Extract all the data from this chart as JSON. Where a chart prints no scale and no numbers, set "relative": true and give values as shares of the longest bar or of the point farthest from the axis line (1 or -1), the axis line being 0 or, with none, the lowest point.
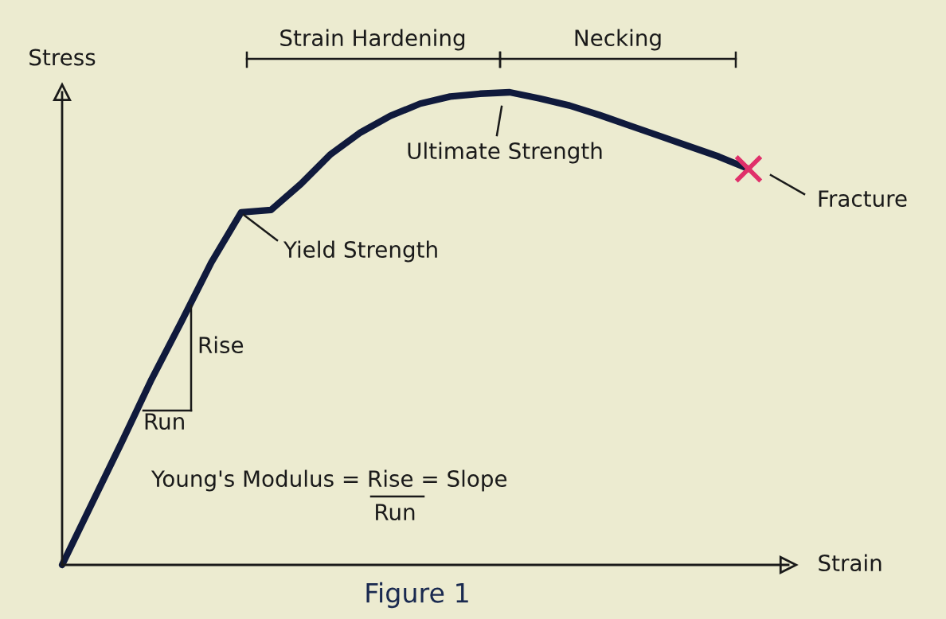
{
  "chart_data": {
    "type": "line",
    "relative": true,
    "xlabel": "Strain",
    "ylabel": "Stress",
    "categories": [
      null,
      null,
      null,
      null,
      null,
      null,
      null,
      null,
      null,
      null,
      null,
      null,
      null,
      null,
      null,
      null,
      null,
      null,
      null,
      null,
      null,
      null,
      null,
      null
    ],
    "series": [
      {
        "color": "#101a3c",
        "values": [
          0,
          0.13,
          0.26,
          0.393,
          0.515,
          0.64,
          0.746,
          0.751,
          0.806,
          0.869,
          0.915,
          0.95,
          0.976,
          0.991,
          0.997,
          1,
          0.987,
          0.972,
          0.952,
          0.93,
          0.908,
          0.886,
          0.864,
          0.838
        ]
      }
    ],
    "annotations": [
      "Strain Hardening",
      "Necking",
      "Yield Strength",
      "Ultimate Strength",
      "Fracture",
      "Rise",
      "Run",
      "Young's Modulus = Rise = Slope",
      "Run",
      "Figure 1"
    ]
  }
}
